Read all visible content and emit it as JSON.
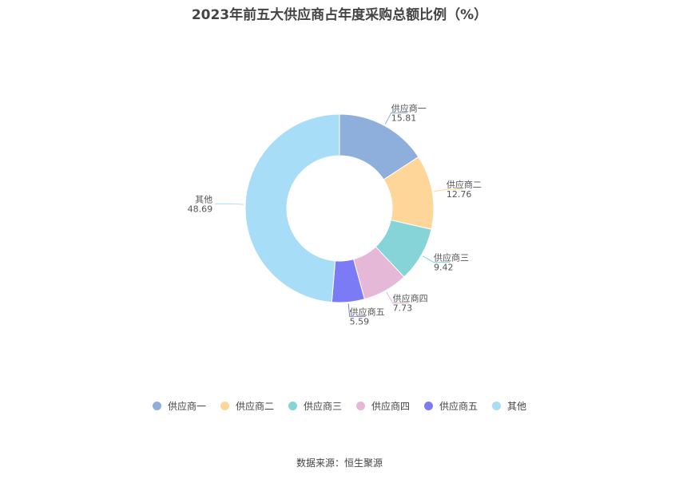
{
  "chart_data": {
    "type": "pie",
    "title": "2023年前五大供应商占年度采购总额比例（%）",
    "categories": [
      "供应商一",
      "供应商二",
      "供应商三",
      "供应商四",
      "供应商五",
      "其他"
    ],
    "values": [
      15.81,
      12.76,
      9.42,
      7.73,
      5.59,
      48.69
    ],
    "colors": [
      "#8eaedb",
      "#ffd699",
      "#86d4d8",
      "#e6b8d8",
      "#7b7cf5",
      "#a8ddf8"
    ],
    "donut": true,
    "legend_position": "bottom"
  },
  "source": "数据来源：恒生聚源"
}
